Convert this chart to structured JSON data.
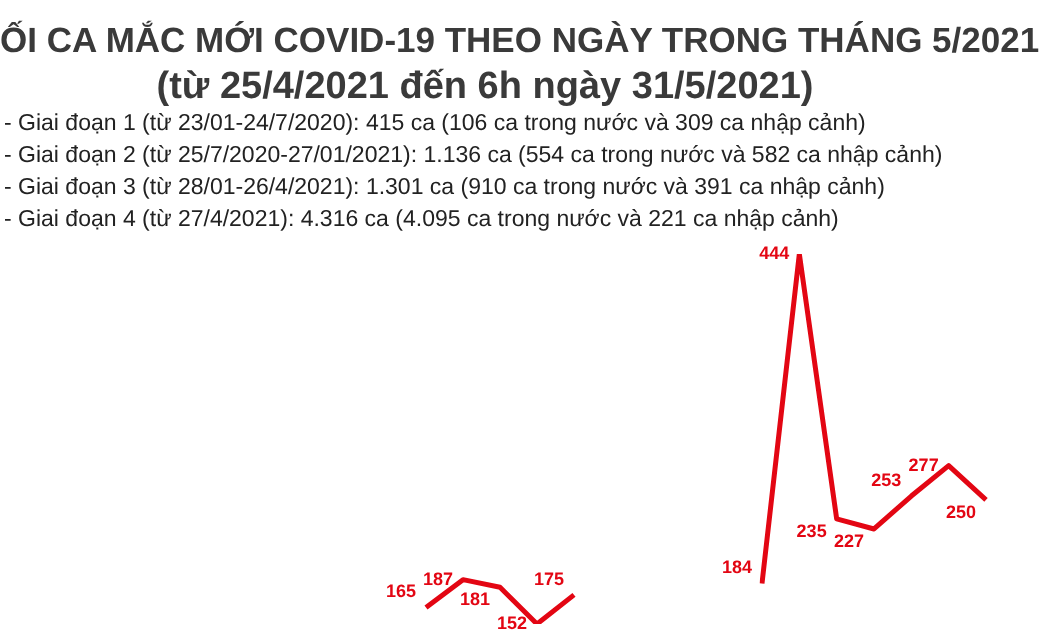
{
  "chart_data": [
    {
      "type": "line",
      "title": "ỐI CA MẮC MỚI COVID-19 THEO NGÀY TRONG THÁNG 5/2021",
      "subtitle": "(từ 25/4/2021 đến 6h ngày 31/5/2021)",
      "annotations": [
        "- Giai đoạn 1 (từ 23/01-24/7/2020): 415 ca (106 ca trong nước và 309 ca nhập cảnh)",
        "- Giai đoạn 2 (từ 25/7/2020-27/01/2021): 1.136 ca (554 ca trong nước và 582 ca nhập cảnh)",
        "- Giai đoạn 3 (từ 28/01-26/4/2021): 1.301 ca (910 ca trong nước và 391 ca nhập cảnh)",
        "- Giai đoạn 4 (từ 27/4/2021): 4.316 ca (4.095 ca trong nước và 221 ca nhập cảnh)"
      ],
      "categories": [
        null,
        null,
        null,
        null,
        null
      ],
      "series": [
        {
          "color": "#e30613",
          "values": [
            165,
            187,
            181,
            152,
            175
          ]
        }
      ],
      "data_labels": true,
      "marker": "none",
      "line_style": "solid"
    },
    {
      "type": "line",
      "categories": [
        null,
        null,
        null,
        null,
        null,
        null,
        null
      ],
      "series": [
        {
          "color": "#e30613",
          "values": [
            184,
            444,
            235,
            227,
            253,
            277,
            250
          ]
        }
      ],
      "data_labels": true,
      "marker": "none",
      "line_style": "solid"
    }
  ]
}
